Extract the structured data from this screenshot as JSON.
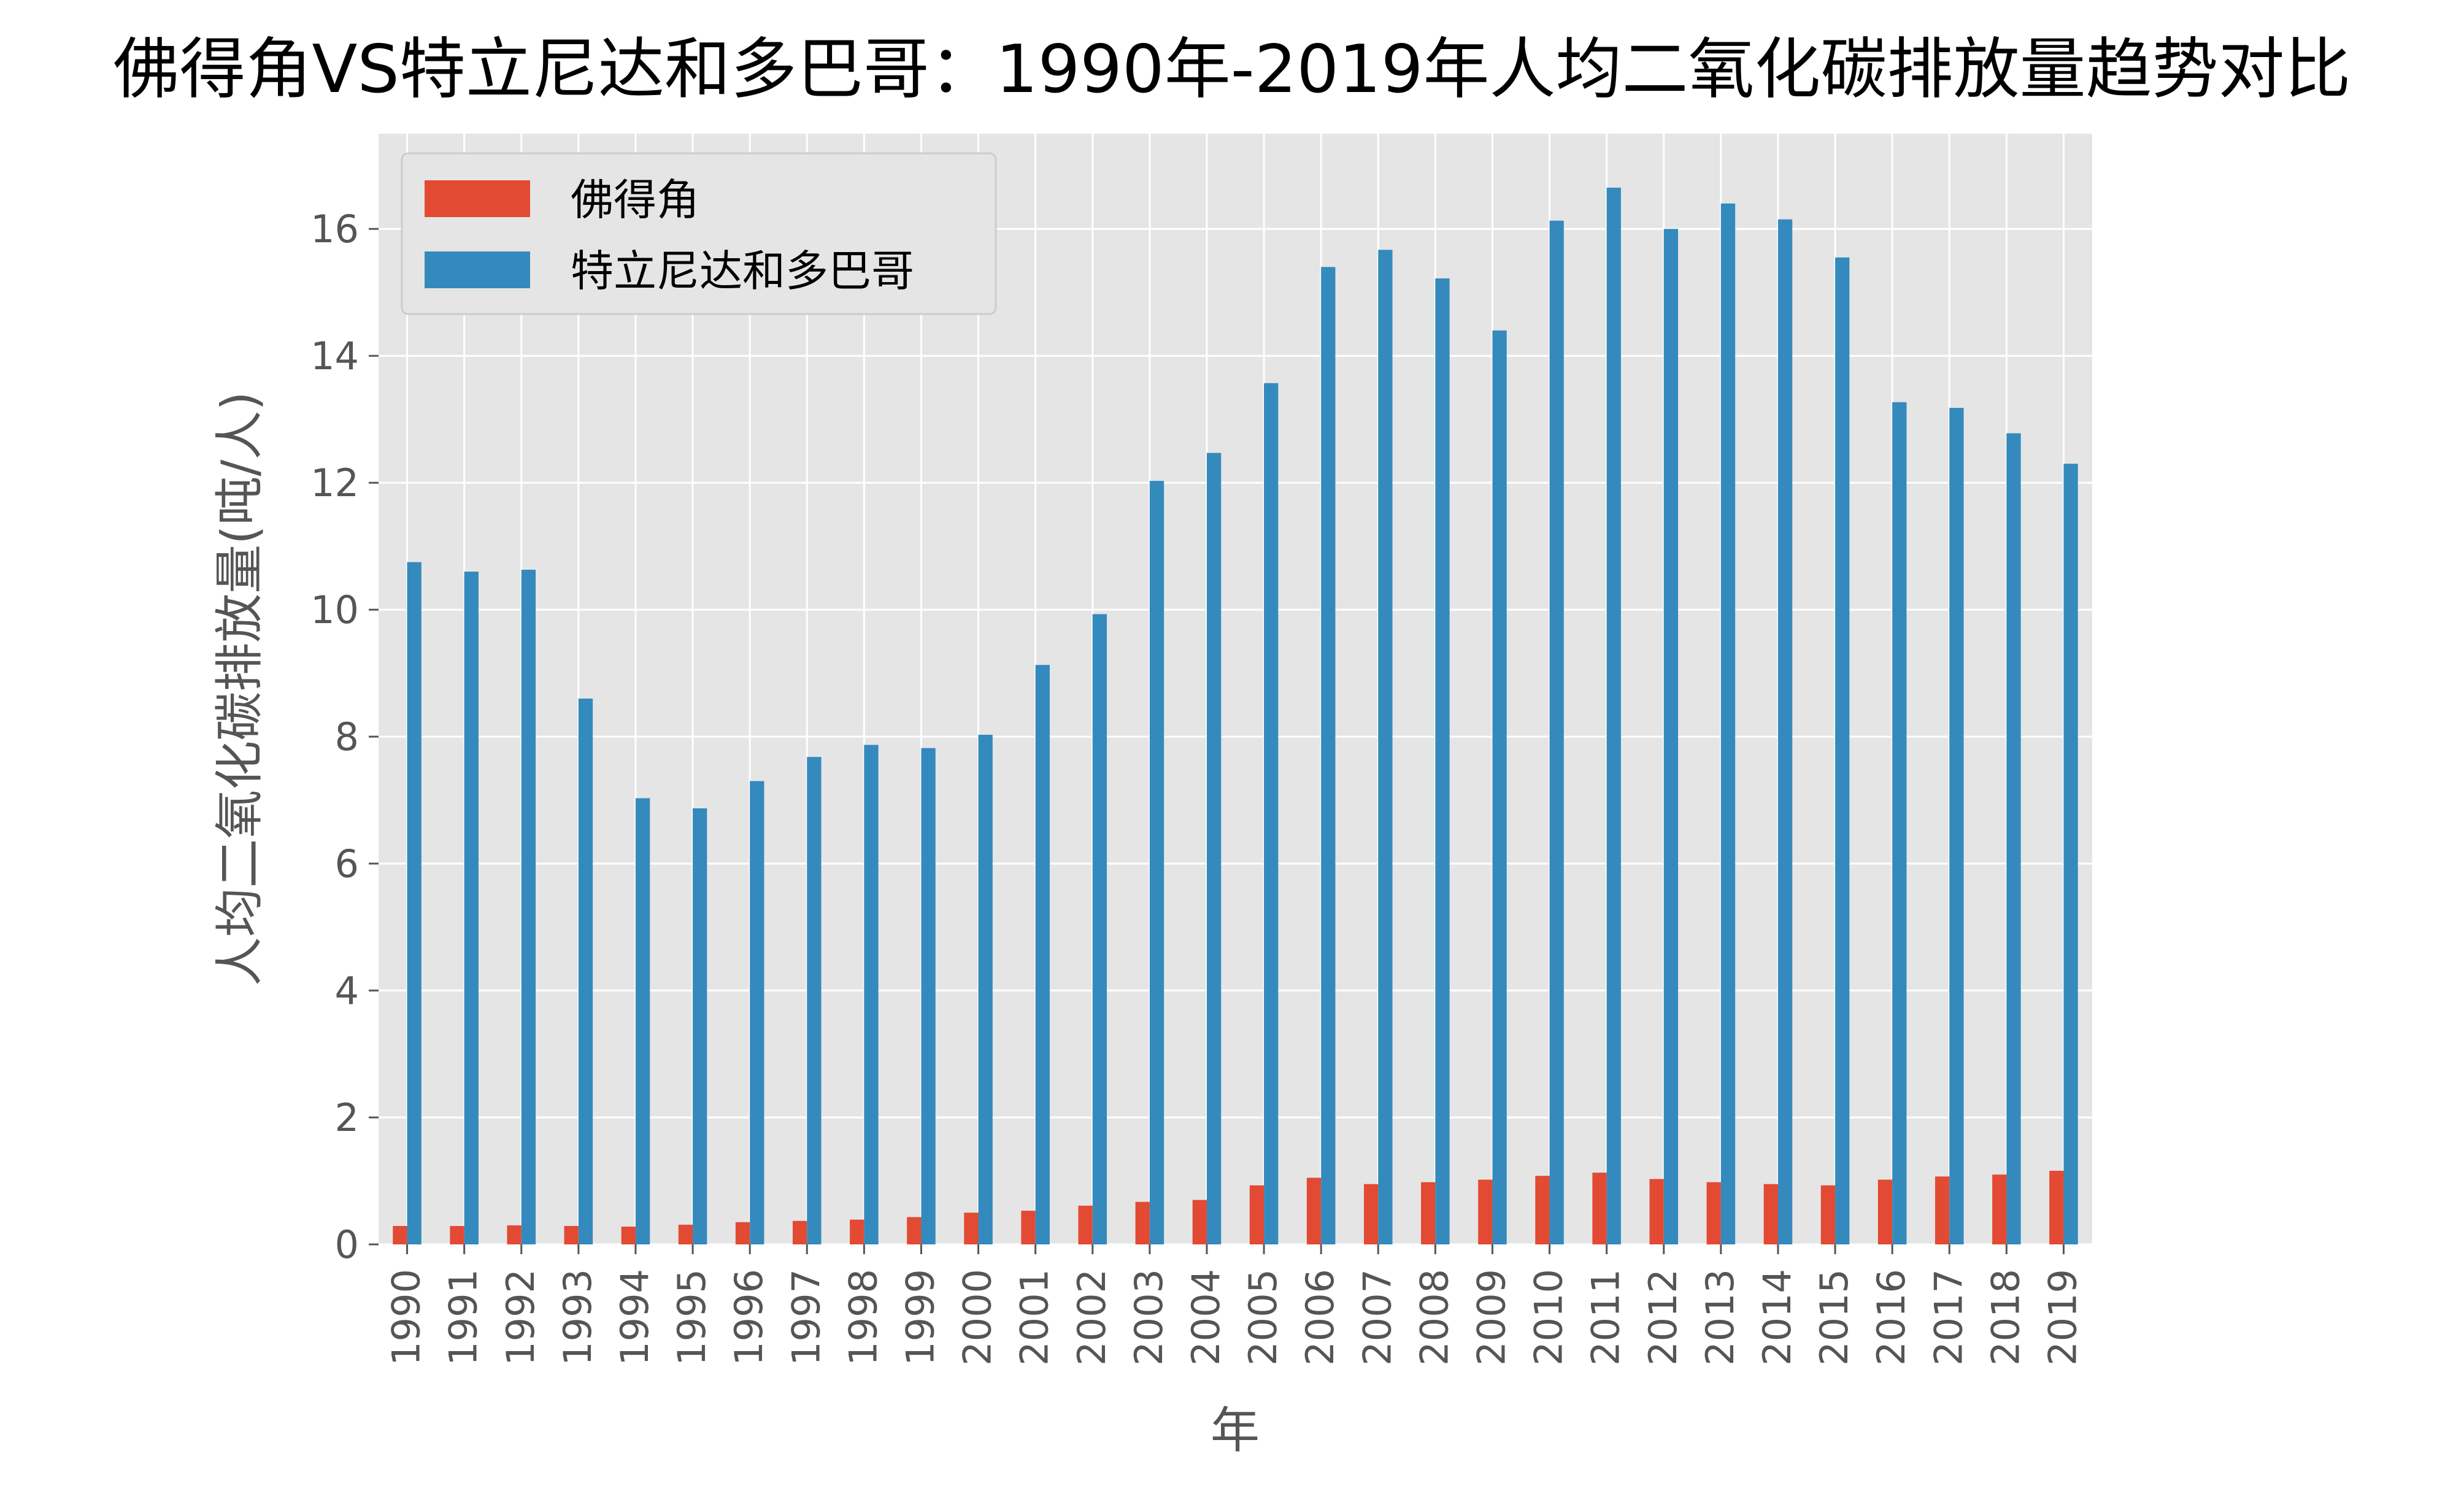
{
  "chart_data": {
    "type": "bar",
    "title": "佛得角VS特立尼达和多巴哥：1990年-2019年人均二氧化碳排放量趋势对比",
    "xlabel": "年",
    "ylabel": "人均二氧化碳排放量(吨/人)",
    "categories": [
      "1990",
      "1991",
      "1992",
      "1993",
      "1994",
      "1995",
      "1996",
      "1997",
      "1998",
      "1999",
      "2000",
      "2001",
      "2002",
      "2003",
      "2004",
      "2005",
      "2006",
      "2007",
      "2008",
      "2009",
      "2010",
      "2011",
      "2012",
      "2013",
      "2014",
      "2015",
      "2016",
      "2017",
      "2018",
      "2019"
    ],
    "series": [
      {
        "name": "佛得角",
        "color": "#E24A33",
        "values": [
          0.29,
          0.29,
          0.3,
          0.29,
          0.28,
          0.31,
          0.35,
          0.37,
          0.39,
          0.43,
          0.5,
          0.53,
          0.61,
          0.67,
          0.7,
          0.93,
          1.05,
          0.95,
          0.98,
          1.02,
          1.08,
          1.13,
          1.03,
          0.98,
          0.95,
          0.93,
          1.02,
          1.07,
          1.1,
          1.16
        ]
      },
      {
        "name": "特立尼达和多巴哥",
        "color": "#348ABD",
        "values": [
          10.75,
          10.6,
          10.63,
          8.6,
          7.03,
          6.87,
          7.3,
          7.68,
          7.87,
          7.82,
          8.03,
          9.13,
          9.93,
          12.03,
          12.47,
          13.57,
          15.4,
          15.67,
          15.22,
          14.4,
          16.13,
          16.65,
          16.0,
          16.4,
          16.15,
          15.55,
          13.27,
          13.18,
          12.78,
          12.3
        ]
      }
    ],
    "ylim": [
      0,
      17.5
    ],
    "yticks": [
      0,
      2,
      4,
      6,
      8,
      10,
      12,
      14,
      16
    ],
    "grid": true,
    "legend_position": "top-left",
    "background": "#E5E5E5",
    "grid_color": "#FFFFFF"
  }
}
